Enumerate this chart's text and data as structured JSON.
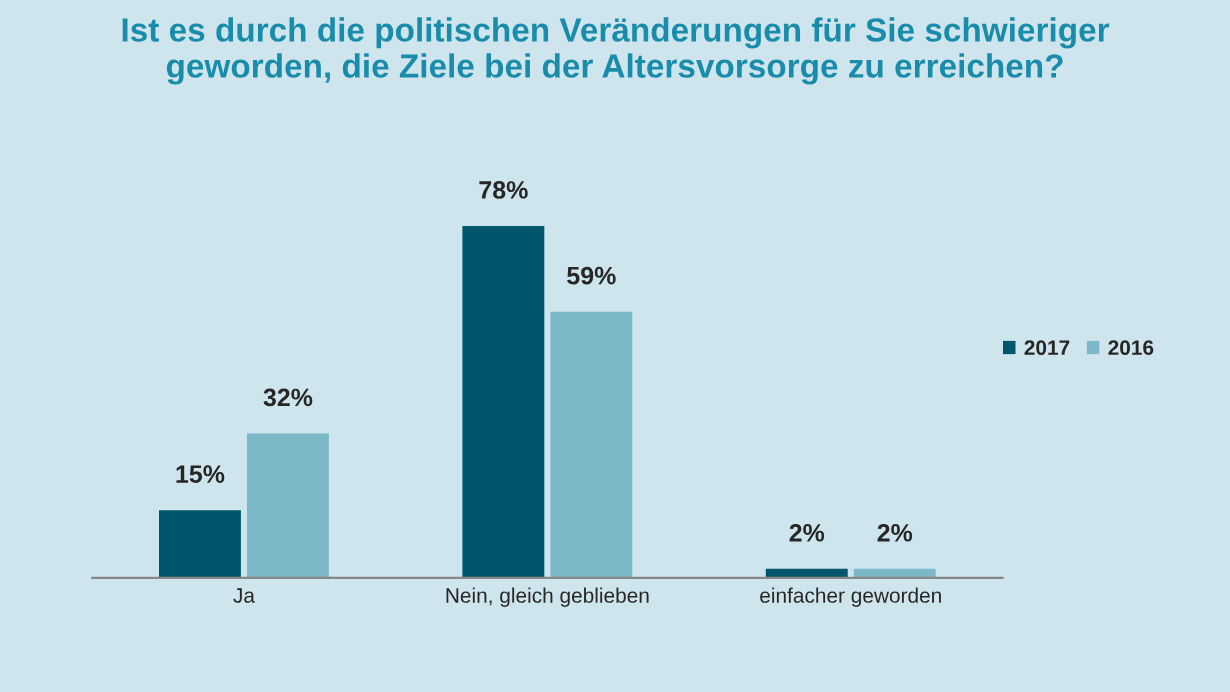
{
  "chart_data": {
    "type": "bar",
    "title": "Ist es durch die politischen Veränderungen für Sie schwieriger\ngeworden, die Ziele bei der Altersvorsorge zu erreichen?",
    "categories": [
      "Ja",
      "Nein, gleich geblieben",
      "einfacher geworden"
    ],
    "series": [
      {
        "name": "2017",
        "color": "#00566a",
        "values": [
          15,
          78,
          2
        ],
        "value_labels": [
          "15%",
          "78%",
          "2%"
        ]
      },
      {
        "name": "2016",
        "color": "#7db8c9",
        "values": [
          32,
          59,
          2
        ],
        "value_labels": [
          "32%",
          "59%",
          "2%"
        ]
      }
    ],
    "legend": "right",
    "grid": false
  }
}
